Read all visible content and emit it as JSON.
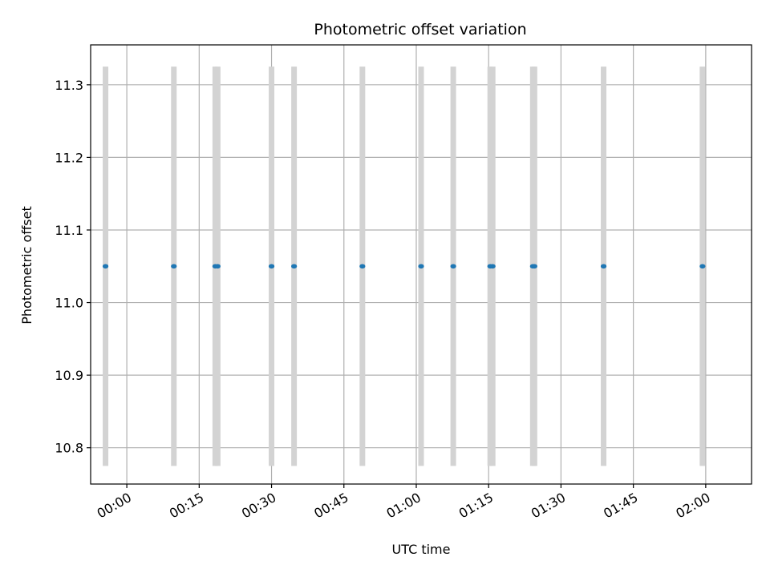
{
  "chart_data": {
    "type": "scatter",
    "title": "Photometric offset variation",
    "xlabel": "UTC time",
    "ylabel": "Photometric offset",
    "x_axis_type": "time",
    "xlim": [
      "23:52:30",
      "02:09:30"
    ],
    "x_ticks": [
      "00:00",
      "00:15",
      "00:30",
      "00:45",
      "01:00",
      "01:15",
      "01:30",
      "01:45",
      "02:00"
    ],
    "ylim": [
      10.75,
      11.355
    ],
    "y_ticks": [
      "10.8",
      "10.9",
      "11.0",
      "11.1",
      "11.2",
      "11.3"
    ],
    "grid": true,
    "point_color": "#1f77b4",
    "errorbar_color": "#d3d3d3",
    "points": [
      {
        "x": "23:55:35",
        "y": 11.05,
        "yerr": 0.275
      },
      {
        "x": "00:09:45",
        "y": 11.05,
        "yerr": 0.275
      },
      {
        "x": "00:18:20",
        "y": 11.05,
        "yerr": 0.275
      },
      {
        "x": "00:18:50",
        "y": 11.05,
        "yerr": 0.275
      },
      {
        "x": "00:30:00",
        "y": 11.05,
        "yerr": 0.275
      },
      {
        "x": "00:34:40",
        "y": 11.05,
        "yerr": 0.275
      },
      {
        "x": "00:48:50",
        "y": 11.05,
        "yerr": 0.275
      },
      {
        "x": "01:01:00",
        "y": 11.05,
        "yerr": 0.275
      },
      {
        "x": "01:07:40",
        "y": 11.05,
        "yerr": 0.275
      },
      {
        "x": "01:15:20",
        "y": 11.05,
        "yerr": 0.275
      },
      {
        "x": "01:15:50",
        "y": 11.05,
        "yerr": 0.275
      },
      {
        "x": "01:24:10",
        "y": 11.05,
        "yerr": 0.275
      },
      {
        "x": "01:24:30",
        "y": 11.05,
        "yerr": 0.275
      },
      {
        "x": "01:38:50",
        "y": 11.05,
        "yerr": 0.275
      },
      {
        "x": "01:59:20",
        "y": 11.05,
        "yerr": 0.275
      }
    ]
  }
}
